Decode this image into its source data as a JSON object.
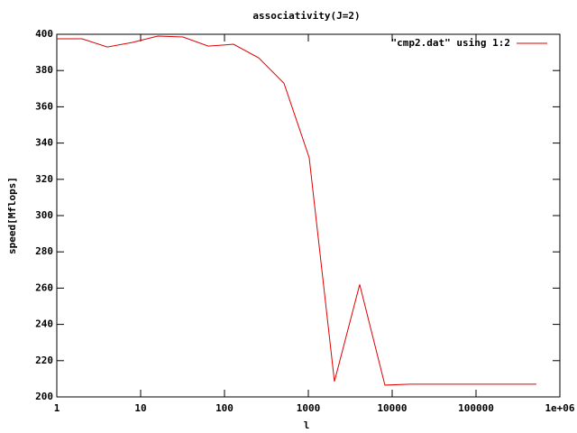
{
  "chart_data": {
    "type": "line",
    "title": "associativity(J=2)",
    "x_label": "l",
    "y_label": "speed[Mflops]",
    "x_scale": "log",
    "legend_position": "top-right",
    "x": [
      1,
      2,
      4,
      8,
      16,
      32,
      64,
      128,
      256,
      512,
      1024,
      2048,
      4096,
      8192,
      16384,
      32768,
      65536,
      131072,
      262144,
      524288
    ],
    "series": [
      {
        "name": "\"cmp2.dat\" using 1:2",
        "color": "#e00000",
        "values": [
          397.5,
          397.5,
          393,
          395.5,
          399,
          398.5,
          393.5,
          394.5,
          387,
          373,
          332,
          208.5,
          262,
          206.5,
          207,
          207,
          207,
          207,
          207,
          207
        ]
      }
    ],
    "xlim": [
      1,
      1000000
    ],
    "xticks": [
      1,
      10,
      100,
      1000,
      10000,
      100000,
      {
        "value": 1000000,
        "label": "1e+06"
      }
    ],
    "ylim": [
      200,
      400
    ],
    "yticks": [
      200,
      220,
      240,
      260,
      280,
      300,
      320,
      340,
      360,
      380,
      400
    ]
  }
}
